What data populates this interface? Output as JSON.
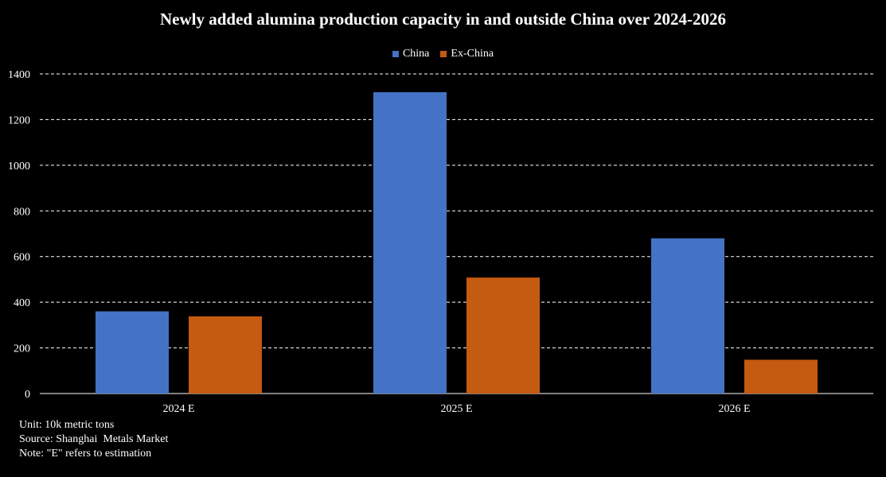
{
  "chart_data": {
    "type": "bar",
    "title": "Newly added alumina production capacity in and outside China over 2024-2026",
    "categories": [
      "2024 E",
      "2025 E",
      "2026 E"
    ],
    "series": [
      {
        "name": "China",
        "values": [
          360,
          1320,
          680
        ],
        "color": "#4472C4"
      },
      {
        "name": "Ex-China",
        "values": [
          338,
          508,
          148
        ],
        "color": "#C55A11"
      }
    ],
    "ylim": [
      0,
      1400
    ],
    "yticks": [
      0,
      200,
      400,
      600,
      800,
      1000,
      1200,
      1400
    ],
    "grid": true,
    "legend_position": "top-center"
  },
  "notes": {
    "unit": "Unit: 10k metric tons",
    "source": "Source: Shanghai  Metals Market",
    "note": "Note: \"E\" refers to estimation"
  }
}
